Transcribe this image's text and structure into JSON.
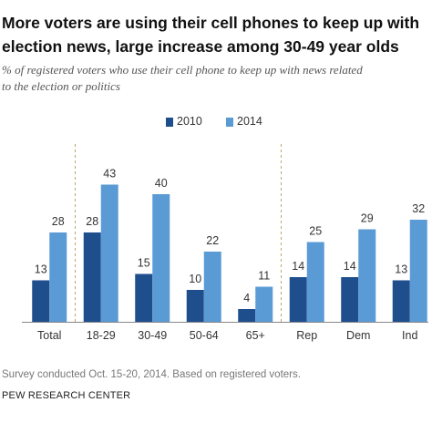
{
  "title_lines": [
    "More voters are using their cell phones to keep up with",
    "election news, large increase among 30-49 year olds"
  ],
  "subtitle_lines": [
    "% of registered voters who use their cell phone to keep up with news related",
    "to the election or politics"
  ],
  "note": "Survey conducted Oct. 15-20, 2014. Based on registered voters.",
  "source": "PEW RESEARCH CENTER",
  "colors": {
    "series_2010": "#1f4e8c",
    "series_2014": "#5b9bd5",
    "divider": "#b7a96a",
    "axis": "#888888"
  },
  "chart_data": {
    "type": "bar",
    "categories": [
      "Total",
      "18-29",
      "30-49",
      "50-64",
      "65+",
      "Rep",
      "Dem",
      "Ind"
    ],
    "series": [
      {
        "name": "2010",
        "values": [
          13,
          28,
          15,
          10,
          4,
          14,
          14,
          13
        ]
      },
      {
        "name": "2014",
        "values": [
          28,
          43,
          40,
          22,
          11,
          25,
          29,
          32
        ]
      }
    ],
    "ylim": [
      0,
      45
    ],
    "grid": false,
    "legend_position": "top-center",
    "xlabel": "",
    "ylabel": ""
  }
}
